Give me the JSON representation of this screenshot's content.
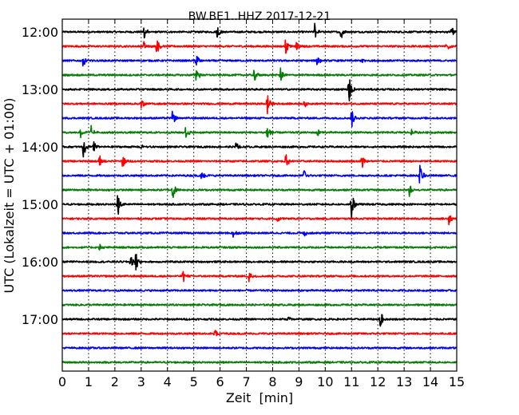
{
  "chart_data": {
    "type": "line",
    "title": "BW.BE1..HHZ 2017-12-21",
    "xlabel": "Zeit  [min]",
    "ylabel": "UTC (Lokalzeit = UTC + 01:00)",
    "xlim": [
      0,
      15
    ],
    "x_ticks": [
      "0",
      "1",
      "2",
      "3",
      "4",
      "5",
      "6",
      "7",
      "8",
      "9",
      "10",
      "11",
      "12",
      "13",
      "14",
      "15"
    ],
    "y_ticks": [
      "12:00",
      "13:00",
      "14:00",
      "15:00",
      "16:00",
      "17:00"
    ],
    "grid": "vertical dotted",
    "colors": [
      "#000000",
      "#ff0000",
      "#0000ff",
      "#008000"
    ],
    "series": [
      {
        "start": "12:00",
        "events": [
          [
            3.1,
            0.9
          ],
          [
            5.9,
            0.7
          ],
          [
            9.6,
            0.9
          ],
          [
            10.6,
            0.9
          ],
          [
            14.8,
            0.9
          ]
        ]
      },
      {
        "start": "12:15",
        "events": [
          [
            3.1,
            0.6
          ],
          [
            3.6,
            0.8
          ],
          [
            8.5,
            0.9
          ],
          [
            8.9,
            0.5
          ],
          [
            14.6,
            0.7
          ]
        ]
      },
      {
        "start": "12:30",
        "events": [
          [
            0.8,
            0.7
          ],
          [
            5.1,
            0.8
          ],
          [
            9.7,
            0.9
          ],
          [
            11.4,
            0.4
          ]
        ]
      },
      {
        "start": "12:45",
        "events": [
          [
            5.1,
            1.0
          ],
          [
            7.3,
            0.7
          ],
          [
            8.3,
            0.8
          ]
        ]
      },
      {
        "start": "13:00",
        "events": [
          [
            10.9,
            1.5
          ]
        ]
      },
      {
        "start": "13:15",
        "events": [
          [
            3.0,
            0.6
          ],
          [
            7.8,
            1.1
          ],
          [
            9.2,
            0.6
          ]
        ]
      },
      {
        "start": "13:30",
        "events": [
          [
            4.2,
            0.9
          ],
          [
            11.0,
            1.0
          ]
        ]
      },
      {
        "start": "13:45",
        "events": [
          [
            0.7,
            0.5
          ],
          [
            1.1,
            0.6
          ],
          [
            4.7,
            0.7
          ],
          [
            7.8,
            1.0
          ],
          [
            9.7,
            0.5
          ],
          [
            13.3,
            0.5
          ]
        ]
      },
      {
        "start": "14:00",
        "events": [
          [
            0.8,
            1.1
          ],
          [
            1.2,
            0.9
          ],
          [
            3.0,
            0.5
          ],
          [
            6.6,
            0.5
          ]
        ]
      },
      {
        "start": "14:15",
        "events": [
          [
            1.4,
            0.8
          ],
          [
            2.3,
            0.8
          ],
          [
            8.5,
            0.8
          ],
          [
            11.4,
            0.8
          ]
        ]
      },
      {
        "start": "14:30",
        "events": [
          [
            5.3,
            0.7
          ],
          [
            9.2,
            0.7
          ],
          [
            13.6,
            1.1
          ]
        ]
      },
      {
        "start": "14:45",
        "events": [
          [
            4.2,
            0.9
          ],
          [
            13.2,
            0.6
          ]
        ]
      },
      {
        "start": "15:00",
        "events": [
          [
            2.1,
            1.6
          ],
          [
            11.0,
            1.5
          ]
        ]
      },
      {
        "start": "15:15",
        "events": [
          [
            8.2,
            0.4
          ],
          [
            14.7,
            0.6
          ]
        ]
      },
      {
        "start": "15:30",
        "events": [
          [
            6.5,
            0.5
          ],
          [
            9.2,
            0.4
          ]
        ]
      },
      {
        "start": "15:45",
        "events": [
          [
            1.4,
            0.4
          ]
        ]
      },
      {
        "start": "16:00",
        "events": [
          [
            2.6,
            0.8
          ],
          [
            2.8,
            0.9
          ]
        ]
      },
      {
        "start": "16:15",
        "events": [
          [
            4.6,
            0.6
          ],
          [
            7.1,
            0.8
          ]
        ]
      },
      {
        "start": "16:30",
        "events": []
      },
      {
        "start": "16:45",
        "events": []
      },
      {
        "start": "17:00",
        "events": [
          [
            8.6,
            0.4
          ],
          [
            12.1,
            1.0
          ]
        ]
      },
      {
        "start": "17:15",
        "events": [
          [
            5.8,
            0.6
          ]
        ]
      },
      {
        "start": "17:30",
        "events": []
      },
      {
        "start": "17:45",
        "events": []
      }
    ]
  }
}
